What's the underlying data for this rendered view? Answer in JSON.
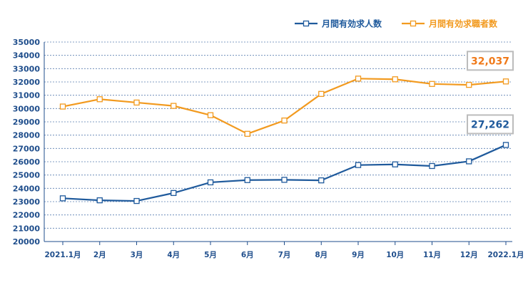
{
  "colors": {
    "series1": "#1f5a9c",
    "series2": "#f29a1f",
    "axis_text": "#1f4e8c",
    "grid": "#5a7fb0",
    "callout_border": "#bcbcbc",
    "callout1_text": "#1f5a9c",
    "callout2_text": "#f07a1a"
  },
  "chart_data": {
    "type": "line",
    "categories": [
      "2021.1月",
      "2月",
      "3月",
      "4月",
      "5月",
      "6月",
      "7月",
      "8月",
      "9月",
      "10月",
      "11月",
      "12月",
      "2022.1月"
    ],
    "series": [
      {
        "name": "月間有効求人数",
        "marker": "square-open",
        "values": [
          23250,
          23100,
          23050,
          23650,
          24450,
          24620,
          24640,
          24600,
          25750,
          25800,
          25680,
          26030,
          27262
        ]
      },
      {
        "name": "月間有効求職者数",
        "marker": "square-open",
        "values": [
          30150,
          30700,
          30450,
          30200,
          29500,
          28100,
          29100,
          31100,
          32250,
          32200,
          31850,
          31780,
          32037
        ]
      }
    ],
    "ylim": [
      20000,
      35000
    ],
    "yticks": [
      20000,
      21000,
      22000,
      23000,
      24000,
      25000,
      26000,
      27000,
      28000,
      29000,
      30000,
      31000,
      32000,
      33000,
      34000,
      35000
    ],
    "grid": "horizontal-dotted",
    "legend_position": "top-right",
    "annotations": [
      {
        "series": "月間有効求人数",
        "category": "2022.1月",
        "text": "27,262"
      },
      {
        "series": "月間有効求職者数",
        "category": "2022.1月",
        "text": "32,037"
      }
    ]
  }
}
